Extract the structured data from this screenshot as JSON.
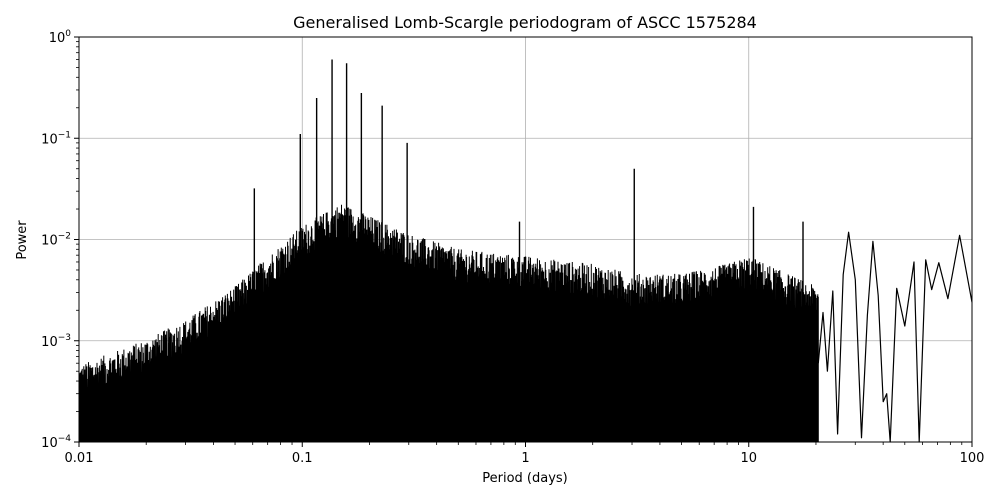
{
  "chart_data": {
    "type": "line",
    "title": "Generalised Lomb-Scargle periodogram of ASCC 1575284",
    "xlabel": "Period (days)",
    "ylabel": "Power",
    "xscale": "log",
    "yscale": "log",
    "xlim": [
      0.01,
      100
    ],
    "ylim": [
      0.0001,
      1
    ],
    "grid": true,
    "x_ticks": [
      {
        "value": 0.01,
        "label": "0.01"
      },
      {
        "value": 0.1,
        "label": "0.1"
      },
      {
        "value": 1,
        "label": "1"
      },
      {
        "value": 10,
        "label": "10"
      },
      {
        "value": 100,
        "label": "100"
      }
    ],
    "y_ticks": [
      {
        "value": 0.0001,
        "label": "10^-4"
      },
      {
        "value": 0.001,
        "label": "10^-3"
      },
      {
        "value": 0.01,
        "label": "10^-2"
      },
      {
        "value": 0.1,
        "label": "10^-1"
      },
      {
        "value": 1,
        "label": "10^0"
      }
    ],
    "series": [
      {
        "color": "#000000",
        "peaks": [
          {
            "x": 0.061,
            "y": 0.032
          },
          {
            "x": 0.098,
            "y": 0.11
          },
          {
            "x": 0.116,
            "y": 0.25
          },
          {
            "x": 0.136,
            "y": 0.6
          },
          {
            "x": 0.158,
            "y": 0.55
          },
          {
            "x": 0.184,
            "y": 0.28
          },
          {
            "x": 0.228,
            "y": 0.21
          },
          {
            "x": 0.295,
            "y": 0.09
          },
          {
            "x": 0.94,
            "y": 0.015
          },
          {
            "x": 3.07,
            "y": 0.05
          },
          {
            "x": 10.5,
            "y": 0.021
          },
          {
            "x": 17.5,
            "y": 0.015
          },
          {
            "x": 28,
            "y": 0.0118
          },
          {
            "x": 36,
            "y": 0.0096
          },
          {
            "x": 88,
            "y": 0.011
          }
        ],
        "envelope": [
          {
            "x": 0.01,
            "y": 0.0005
          },
          {
            "x": 0.02,
            "y": 0.0009
          },
          {
            "x": 0.03,
            "y": 0.0014
          },
          {
            "x": 0.05,
            "y": 0.003
          },
          {
            "x": 0.07,
            "y": 0.006
          },
          {
            "x": 0.1,
            "y": 0.012
          },
          {
            "x": 0.15,
            "y": 0.02
          },
          {
            "x": 0.2,
            "y": 0.015
          },
          {
            "x": 0.3,
            "y": 0.01
          },
          {
            "x": 0.5,
            "y": 0.007
          },
          {
            "x": 1,
            "y": 0.006
          },
          {
            "x": 2,
            "y": 0.005
          },
          {
            "x": 3,
            "y": 0.004
          },
          {
            "x": 5,
            "y": 0.004
          },
          {
            "x": 8,
            "y": 0.005
          },
          {
            "x": 10,
            "y": 0.006
          },
          {
            "x": 15,
            "y": 0.004
          },
          {
            "x": 20,
            "y": 0.003
          }
        ],
        "smooth_tail": [
          {
            "x": 20.5,
            "y": 0.0006
          },
          {
            "x": 21.5,
            "y": 0.0019
          },
          {
            "x": 22.5,
            "y": 0.0005
          },
          {
            "x": 23.8,
            "y": 0.0031
          },
          {
            "x": 25,
            "y": 0.00012
          },
          {
            "x": 26.5,
            "y": 0.0045
          },
          {
            "x": 28,
            "y": 0.0118
          },
          {
            "x": 30,
            "y": 0.004
          },
          {
            "x": 32,
            "y": 0.00011
          },
          {
            "x": 34,
            "y": 0.0018
          },
          {
            "x": 36,
            "y": 0.0096
          },
          {
            "x": 38,
            "y": 0.0028
          },
          {
            "x": 40,
            "y": 0.00025
          },
          {
            "x": 41.5,
            "y": 0.0003
          },
          {
            "x": 43,
            "y": 0.0001
          },
          {
            "x": 46,
            "y": 0.0033
          },
          {
            "x": 50,
            "y": 0.0014
          },
          {
            "x": 55,
            "y": 0.006
          },
          {
            "x": 58,
            "y": 0.0001
          },
          {
            "x": 62,
            "y": 0.0063
          },
          {
            "x": 66,
            "y": 0.0032
          },
          {
            "x": 71,
            "y": 0.0059
          },
          {
            "x": 78,
            "y": 0.0026
          },
          {
            "x": 88,
            "y": 0.011
          },
          {
            "x": 100,
            "y": 0.0024
          }
        ]
      }
    ]
  }
}
